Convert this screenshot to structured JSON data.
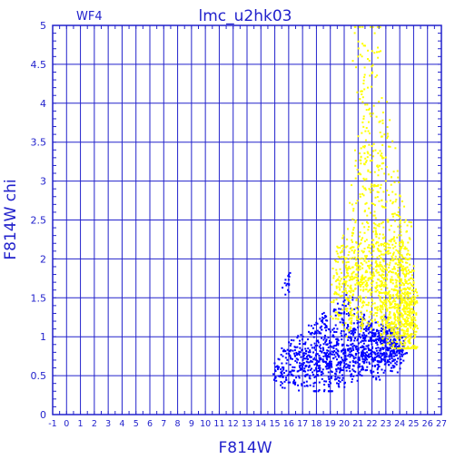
{
  "colors": {
    "axis": "#2222cc",
    "grid": "#2222cc",
    "text": "#2222cc",
    "blue_series": "#0000ff",
    "yellow_series": "#ffff00",
    "background": "#ffffff"
  },
  "chart_data": {
    "type": "scatter",
    "title": "lmc_u2hk03",
    "panel_label": "WF4",
    "xlabel": "F814W",
    "ylabel": "F814W  chi",
    "xlim": [
      -1,
      27
    ],
    "ylim": [
      0,
      5
    ],
    "grid": true,
    "x_ticks": [
      "-1",
      "0",
      "1",
      "2",
      "3",
      "4",
      "5",
      "6",
      "7",
      "8",
      "9",
      "10",
      "11",
      "12",
      "13",
      "14",
      "15",
      "16",
      "17",
      "18",
      "19",
      "20",
      "21",
      "22",
      "23",
      "24",
      "25",
      "26",
      "27"
    ],
    "y_ticks": [
      "0",
      "0.5",
      "1",
      "1.5",
      "2",
      "2.5",
      "3",
      "3.5",
      "4",
      "4.5",
      "5"
    ],
    "series": [
      {
        "color": "blue",
        "description_values": "points concentrated around F814W 15-24.5, chi 0.3-1.7",
        "x_range": [
          14.8,
          24.5
        ],
        "y_range": [
          0.3,
          1.7
        ],
        "points": [
          [
            14.9,
            0.52
          ],
          [
            15.3,
            0.61
          ],
          [
            15.6,
            0.48
          ],
          [
            15.8,
            0.73
          ],
          [
            15.9,
            1.68
          ],
          [
            16.1,
            0.55
          ],
          [
            16.3,
            0.82
          ],
          [
            16.4,
            0.44
          ],
          [
            16.6,
            0.67
          ],
          [
            16.8,
            0.91
          ],
          [
            16.9,
            0.58
          ],
          [
            17.1,
            0.72
          ],
          [
            17.2,
            0.49
          ],
          [
            17.4,
            0.85
          ],
          [
            17.5,
            0.63
          ],
          [
            17.7,
            1.05
          ],
          [
            17.8,
            0.71
          ],
          [
            17.9,
            0.41
          ],
          [
            18.0,
            0.78
          ],
          [
            18.1,
            0.95
          ],
          [
            18.2,
            0.62
          ],
          [
            18.3,
            1.12
          ],
          [
            18.4,
            0.55
          ],
          [
            18.5,
            0.83
          ],
          [
            18.6,
            0.68
          ],
          [
            18.7,
            1.21
          ],
          [
            18.8,
            0.74
          ],
          [
            18.9,
            0.36
          ],
          [
            19.0,
            0.88
          ],
          [
            19.1,
            0.61
          ],
          [
            19.2,
            1.02
          ],
          [
            19.3,
            0.77
          ],
          [
            19.4,
            0.52
          ],
          [
            19.5,
            0.93
          ],
          [
            19.6,
            1.31
          ],
          [
            19.7,
            0.66
          ],
          [
            19.8,
            0.81
          ],
          [
            19.9,
            0.47
          ],
          [
            20.0,
            1.15
          ],
          [
            20.1,
            0.72
          ],
          [
            20.2,
            0.89
          ],
          [
            20.3,
            1.42
          ],
          [
            20.4,
            0.63
          ],
          [
            20.5,
            0.98
          ],
          [
            20.6,
            0.76
          ],
          [
            20.7,
            1.08
          ],
          [
            20.8,
            0.55
          ],
          [
            20.9,
            0.84
          ],
          [
            21.0,
            1.26
          ],
          [
            21.1,
            0.71
          ],
          [
            21.2,
            0.93
          ],
          [
            21.3,
            0.62
          ],
          [
            21.4,
            1.05
          ],
          [
            21.5,
            0.79
          ],
          [
            21.6,
            0.88
          ],
          [
            21.7,
            1.18
          ],
          [
            21.8,
            0.67
          ],
          [
            21.9,
            0.96
          ],
          [
            22.0,
            0.81
          ],
          [
            22.1,
            1.09
          ],
          [
            22.2,
            0.73
          ],
          [
            22.3,
            0.92
          ],
          [
            22.4,
            0.58
          ],
          [
            22.5,
            1.01
          ],
          [
            22.6,
            0.85
          ],
          [
            22.7,
            0.69
          ],
          [
            22.8,
            0.97
          ],
          [
            22.9,
            0.78
          ],
          [
            23.0,
            1.12
          ],
          [
            23.1,
            0.86
          ],
          [
            23.2,
            0.64
          ],
          [
            23.3,
            0.94
          ],
          [
            23.4,
            0.82
          ],
          [
            23.5,
            1.03
          ],
          [
            23.6,
            0.75
          ],
          [
            23.7,
            0.91
          ],
          [
            23.8,
            0.68
          ],
          [
            23.9,
            0.87
          ],
          [
            24.0,
            0.79
          ],
          [
            24.2,
            0.84
          ]
        ]
      },
      {
        "color": "yellow",
        "description_values": "points concentrated around F814W 19-25, chi 0.8-5",
        "x_range": [
          19.0,
          25.2
        ],
        "y_range": [
          0.8,
          5.0
        ],
        "points": [
          [
            19.3,
            1.55
          ],
          [
            19.8,
            1.82
          ],
          [
            20.1,
            1.35
          ],
          [
            20.3,
            2.05
          ],
          [
            20.5,
            1.62
          ],
          [
            20.7,
            2.4
          ],
          [
            20.9,
            1.48
          ],
          [
            21.0,
            4.6
          ],
          [
            21.1,
            3.1
          ],
          [
            21.2,
            2.2
          ],
          [
            21.3,
            1.75
          ],
          [
            21.4,
            3.8
          ],
          [
            21.5,
            2.62
          ],
          [
            21.6,
            1.41
          ],
          [
            21.7,
            4.2
          ],
          [
            21.8,
            2.9
          ],
          [
            21.9,
            1.92
          ],
          [
            22.0,
            3.45
          ],
          [
            22.1,
            2.35
          ],
          [
            22.2,
            4.9
          ],
          [
            22.3,
            1.58
          ],
          [
            22.4,
            3.2
          ],
          [
            22.5,
            2.1
          ],
          [
            22.6,
            1.35
          ],
          [
            22.7,
            2.75
          ],
          [
            22.8,
            1.88
          ],
          [
            22.9,
            3.6
          ],
          [
            23.0,
            1.45
          ],
          [
            23.1,
            2.5
          ],
          [
            23.2,
            1.22
          ],
          [
            23.3,
            1.95
          ],
          [
            23.4,
            3.05
          ],
          [
            23.5,
            1.38
          ],
          [
            23.6,
            2.28
          ],
          [
            23.7,
            1.15
          ],
          [
            23.8,
            1.72
          ],
          [
            23.9,
            2.6
          ],
          [
            24.0,
            1.31
          ],
          [
            24.1,
            1.9
          ],
          [
            24.2,
            1.08
          ],
          [
            24.3,
            1.55
          ],
          [
            24.4,
            2.15
          ],
          [
            24.5,
            1.25
          ],
          [
            24.6,
            1.68
          ],
          [
            24.7,
            1.02
          ],
          [
            24.8,
            1.45
          ],
          [
            24.9,
            1.18
          ],
          [
            25.0,
            1.32
          ]
        ]
      }
    ]
  }
}
